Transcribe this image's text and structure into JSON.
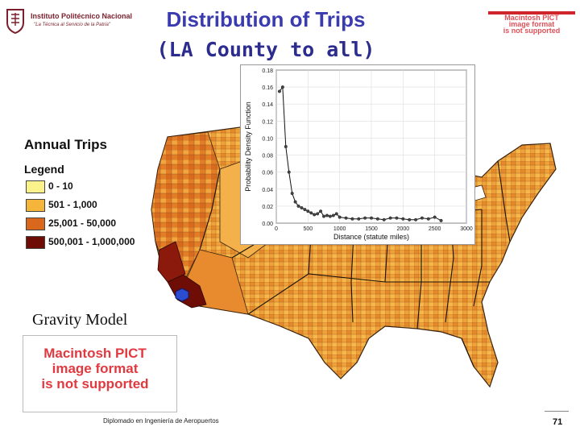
{
  "header": {
    "institution": "Instituto Politécnico Nacional",
    "motto": "\"La Técnica al Servicio de la Patria\"",
    "title_line1": "Distribution of Trips",
    "title_line2": "(LA County to all)"
  },
  "notice_top": {
    "line1": "Macintosh PICT",
    "line2": "image format",
    "line3": "is not supported"
  },
  "map": {
    "caption": "Annual Trips",
    "legend": {
      "title": "Legend",
      "items": [
        {
          "label": "0 - 10",
          "color": "#fbf28c"
        },
        {
          "label": "501 - 1,000",
          "color": "#f5b53a"
        },
        {
          "label": "25,001 - 50,000",
          "color": "#d9671c"
        },
        {
          "label": "500,001 - 1,000,000",
          "color": "#6e0c06"
        }
      ]
    }
  },
  "gravity": {
    "label": "Gravity Model",
    "notice_line1": "Macintosh PICT",
    "notice_line2": "image format",
    "notice_line3": "is not supported"
  },
  "footer": {
    "text": "Diplomado en Ingeniería de Aeropuertos",
    "page_number": "71"
  },
  "chart_data": {
    "type": "line",
    "xlabel": "Distance (statute miles)",
    "ylabel": "Probability Density Function",
    "xlim": [
      0,
      3000
    ],
    "ylim": [
      0,
      0.18
    ],
    "xticks": [
      0,
      500,
      1000,
      1500,
      2000,
      2500,
      3000
    ],
    "yticks": [
      0.0,
      0.02,
      0.04,
      0.06,
      0.08,
      0.1,
      0.12,
      0.14,
      0.16,
      0.18
    ],
    "grid": true,
    "series": [
      {
        "x": [
          50,
          100,
          150,
          200,
          250,
          300,
          350,
          400,
          450,
          500,
          550,
          600,
          650,
          700,
          750,
          800,
          850,
          900,
          950,
          1000,
          1100,
          1200,
          1300,
          1400,
          1500,
          1600,
          1700,
          1800,
          1900,
          2000,
          2100,
          2200,
          2300,
          2400,
          2500,
          2600
        ],
        "y": [
          0.155,
          0.16,
          0.09,
          0.06,
          0.035,
          0.025,
          0.02,
          0.018,
          0.016,
          0.014,
          0.012,
          0.01,
          0.011,
          0.014,
          0.008,
          0.009,
          0.008,
          0.009,
          0.011,
          0.007,
          0.006,
          0.005,
          0.005,
          0.006,
          0.006,
          0.005,
          0.004,
          0.006,
          0.006,
          0.005,
          0.004,
          0.004,
          0.006,
          0.005,
          0.007,
          0.003
        ]
      }
    ]
  }
}
